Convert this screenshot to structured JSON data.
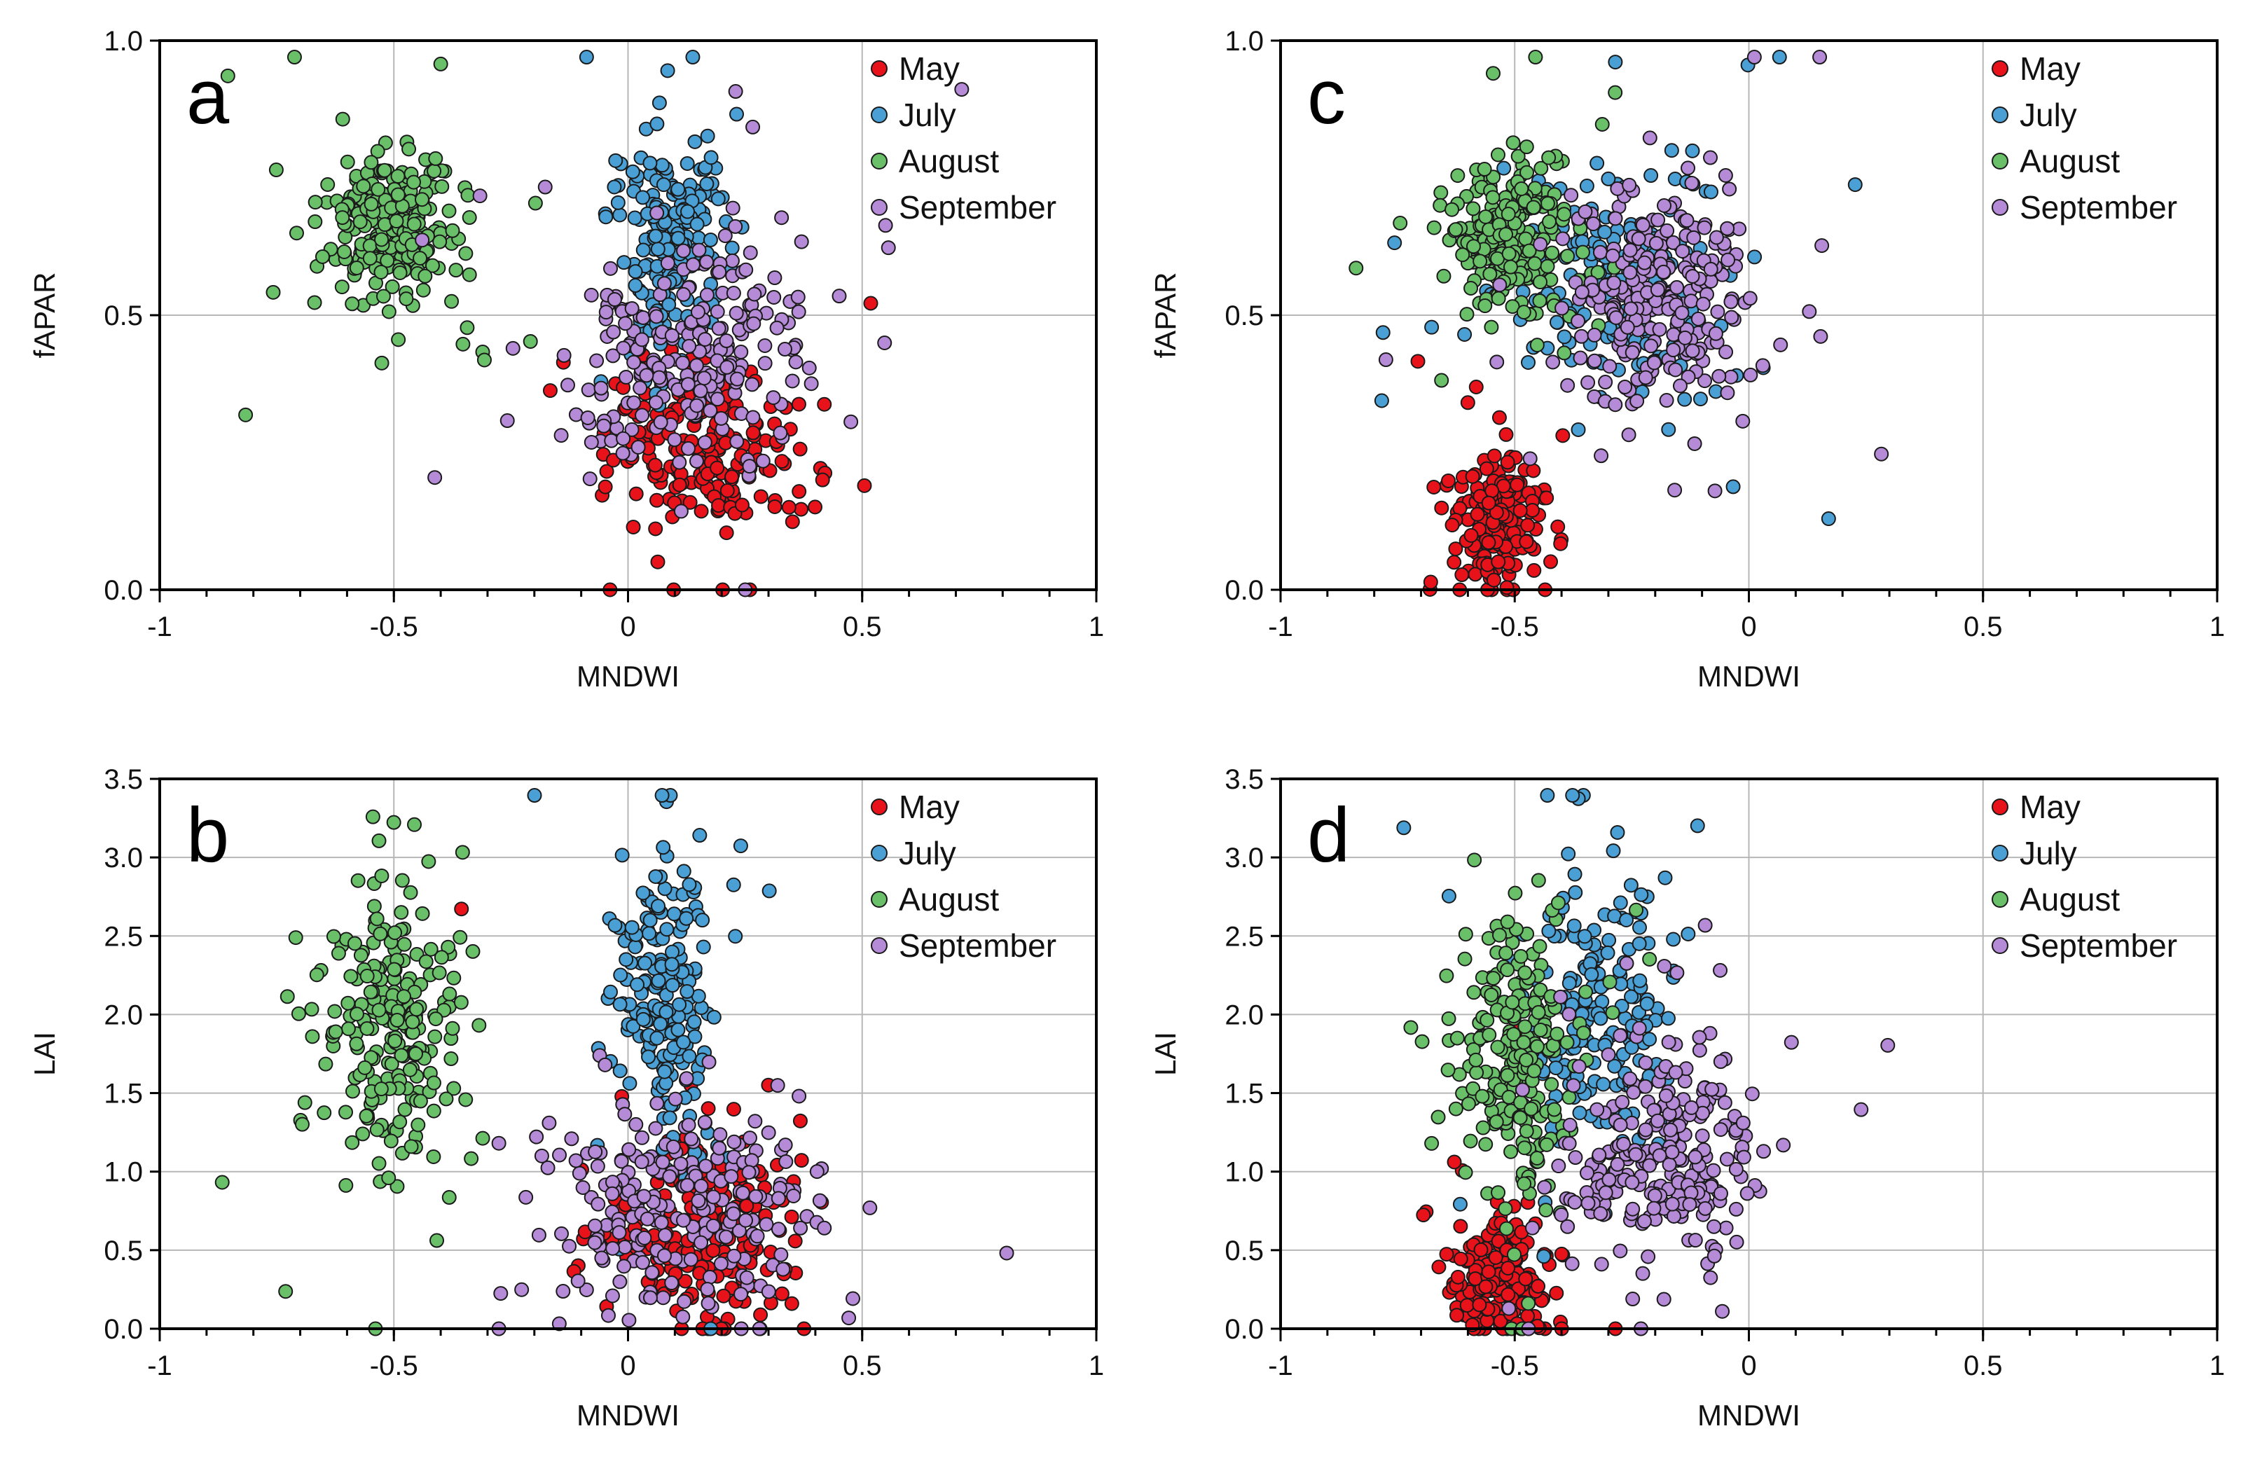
{
  "series_colors": {
    "May": "#e8121a",
    "July": "#4a9fd4",
    "August": "#6abf69",
    "September": "#b58ad6"
  },
  "chart_data": [
    {
      "type": "scatter",
      "id": "a",
      "panel_label": "a",
      "xlabel": "MNDWI",
      "ylabel": "fAPAR",
      "xlim": [
        -1,
        1
      ],
      "ylim": [
        0,
        1
      ],
      "xticks": [
        -1,
        -0.5,
        0,
        0.5,
        1
      ],
      "xtick_labels": [
        "-1",
        "-0.5",
        "0",
        "0.5",
        "1"
      ],
      "yticks": [
        0,
        0.5,
        1
      ],
      "ytick_labels": [
        "0.0",
        "0.5",
        "1.0"
      ],
      "xgrid": [
        -0.5,
        0,
        0.5
      ],
      "ygrid": [
        0.5
      ],
      "legend_position": "top-right",
      "series": [
        {
          "name": "May",
          "cluster": {
            "cx": 0.16,
            "cy": 0.25,
            "sx": 0.1,
            "sy": 0.07,
            "n": 200
          }
        },
        {
          "name": "July",
          "cluster": {
            "cx": 0.09,
            "cy": 0.62,
            "sx": 0.05,
            "sy": 0.09,
            "n": 210
          }
        },
        {
          "name": "August",
          "cluster": {
            "cx": -0.5,
            "cy": 0.66,
            "sx": 0.07,
            "sy": 0.07,
            "n": 240
          }
        },
        {
          "name": "September",
          "cluster": {
            "cx": 0.12,
            "cy": 0.42,
            "sx": 0.13,
            "sy": 0.1,
            "n": 240
          }
        }
      ]
    },
    {
      "type": "scatter",
      "id": "b",
      "panel_label": "b",
      "xlabel": "MNDWI",
      "ylabel": "LAI",
      "xlim": [
        -1,
        1
      ],
      "ylim": [
        0,
        3.5
      ],
      "xticks": [
        -1,
        -0.5,
        0,
        0.5,
        1
      ],
      "xtick_labels": [
        "-1",
        "-0.5",
        "0",
        "0.5",
        "1"
      ],
      "yticks": [
        0,
        0.5,
        1,
        1.5,
        2,
        2.5,
        3,
        3.5
      ],
      "ytick_labels": [
        "0.0",
        "0.5",
        "1.0",
        "1.5",
        "2.0",
        "2.5",
        "3.0",
        "3.5"
      ],
      "xgrid": [
        -0.5,
        0,
        0.5
      ],
      "ygrid": [
        0.5,
        1,
        1.5,
        2,
        2.5,
        3
      ],
      "legend_position": "top-right",
      "series": [
        {
          "name": "May",
          "cluster": {
            "cx": 0.15,
            "cy": 0.65,
            "sx": 0.1,
            "sy": 0.3,
            "n": 200
          }
        },
        {
          "name": "July",
          "cluster": {
            "cx": 0.08,
            "cy": 2.1,
            "sx": 0.05,
            "sy": 0.45,
            "n": 210
          }
        },
        {
          "name": "August",
          "cluster": {
            "cx": -0.5,
            "cy": 1.95,
            "sx": 0.07,
            "sy": 0.42,
            "n": 240
          }
        },
        {
          "name": "September",
          "cluster": {
            "cx": 0.1,
            "cy": 0.75,
            "sx": 0.14,
            "sy": 0.3,
            "n": 240
          }
        }
      ]
    },
    {
      "type": "scatter",
      "id": "c",
      "panel_label": "c",
      "xlabel": "MNDWI",
      "ylabel": "fAPAR",
      "xlim": [
        -1,
        1
      ],
      "ylim": [
        0,
        1
      ],
      "xticks": [
        -1,
        -0.5,
        0,
        0.5,
        1
      ],
      "xtick_labels": [
        "-1",
        "-0.5",
        "0",
        "0.5",
        "1"
      ],
      "yticks": [
        0,
        0.5,
        1
      ],
      "ytick_labels": [
        "0.0",
        "0.5",
        "1.0"
      ],
      "xgrid": [
        -0.5,
        0,
        0.5
      ],
      "ygrid": [
        0.5
      ],
      "legend_position": "top-right",
      "series": [
        {
          "name": "May",
          "cluster": {
            "cx": -0.54,
            "cy": 0.13,
            "sx": 0.05,
            "sy": 0.06,
            "n": 200
          }
        },
        {
          "name": "July",
          "cluster": {
            "cx": -0.28,
            "cy": 0.56,
            "sx": 0.12,
            "sy": 0.1,
            "n": 200
          }
        },
        {
          "name": "August",
          "cluster": {
            "cx": -0.51,
            "cy": 0.64,
            "sx": 0.06,
            "sy": 0.07,
            "n": 240
          }
        },
        {
          "name": "September",
          "cluster": {
            "cx": -0.2,
            "cy": 0.54,
            "sx": 0.1,
            "sy": 0.1,
            "n": 260
          }
        }
      ]
    },
    {
      "type": "scatter",
      "id": "d",
      "panel_label": "d",
      "xlabel": "MNDWI",
      "ylabel": "LAI",
      "xlim": [
        -1,
        1
      ],
      "ylim": [
        0,
        3.5
      ],
      "xticks": [
        -1,
        -0.5,
        0,
        0.5,
        1
      ],
      "xtick_labels": [
        "-1",
        "-0.5",
        "0",
        "0.5",
        "1"
      ],
      "yticks": [
        0,
        0.5,
        1,
        1.5,
        2,
        2.5,
        3,
        3.5
      ],
      "ytick_labels": [
        "0.0",
        "0.5",
        "1.0",
        "1.5",
        "2.0",
        "2.5",
        "3.0",
        "3.5"
      ],
      "xgrid": [
        -0.5,
        0,
        0.5
      ],
      "ygrid": [
        0.5,
        1,
        1.5,
        2,
        2.5,
        3
      ],
      "legend_position": "top-right",
      "series": [
        {
          "name": "May",
          "cluster": {
            "cx": -0.53,
            "cy": 0.3,
            "sx": 0.05,
            "sy": 0.2,
            "n": 200
          }
        },
        {
          "name": "July",
          "cluster": {
            "cx": -0.33,
            "cy": 2.05,
            "sx": 0.08,
            "sy": 0.45,
            "n": 200
          }
        },
        {
          "name": "August",
          "cluster": {
            "cx": -0.5,
            "cy": 1.75,
            "sx": 0.06,
            "sy": 0.4,
            "n": 240
          }
        },
        {
          "name": "September",
          "cluster": {
            "cx": -0.2,
            "cy": 1.1,
            "sx": 0.1,
            "sy": 0.32,
            "n": 260
          }
        }
      ]
    }
  ]
}
